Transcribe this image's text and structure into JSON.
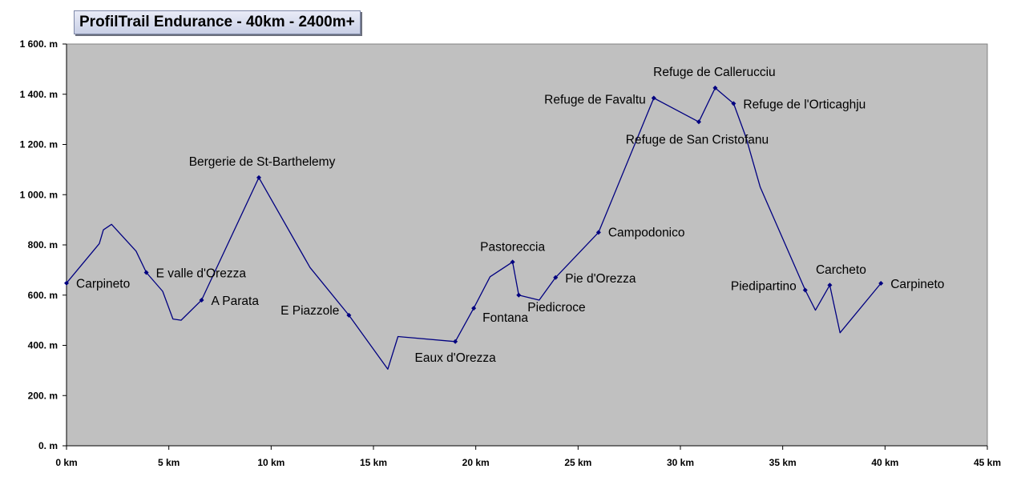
{
  "title": "ProfilTrail Endurance - 40km - 2400m+",
  "colors": {
    "plot_bg": "#c0c0c0",
    "line": "#000080",
    "marker": "#000080"
  },
  "chart_data": {
    "type": "line",
    "title": "ProfilTrail Endurance - 40km - 2400m+",
    "xlabel": "",
    "ylabel": "",
    "xlim": [
      0,
      45
    ],
    "ylim": [
      0,
      1600
    ],
    "x_ticks": [
      0,
      5,
      10,
      15,
      20,
      25,
      30,
      35,
      40,
      45
    ],
    "x_tick_labels": [
      "0 km",
      "5 km",
      "10 km",
      "15 km",
      "20 km",
      "25 km",
      "30 km",
      "35 km",
      "40 km",
      "45 km"
    ],
    "y_ticks": [
      0,
      200,
      400,
      600,
      800,
      1000,
      1200,
      1400,
      1600
    ],
    "y_tick_labels": [
      "0. m",
      "200. m",
      "400. m",
      "600. m",
      "800. m",
      "1 000. m",
      "1 200. m",
      "1 400. m",
      "1 600. m"
    ],
    "grid": false,
    "legend": "none",
    "series": [
      {
        "x": [
          0,
          1.6,
          1.8,
          2.2,
          3.4,
          3.9,
          4.7,
          5.2,
          5.6,
          6.6,
          9.4,
          11.9,
          13.8,
          15.7,
          16.2,
          19.0,
          19.9,
          20.7,
          21.8,
          22.1,
          23.1,
          23.9,
          26.0,
          28.7,
          30.9,
          31.7,
          32.6,
          33.2,
          33.9,
          36.1,
          36.6,
          37.3,
          37.8,
          39.8
        ],
        "y": [
          648,
          805,
          860,
          882,
          775,
          690,
          615,
          505,
          500,
          580,
          1068,
          710,
          520,
          305,
          435,
          415,
          548,
          673,
          732,
          600,
          580,
          670,
          850,
          1385,
          1290,
          1425,
          1363,
          1230,
          1030,
          620,
          540,
          640,
          450,
          647
        ]
      }
    ],
    "waypoints": [
      {
        "label": "Carpineto",
        "x": 0,
        "y": 648
      },
      {
        "label": "E valle d'Orezza",
        "x": 3.9,
        "y": 690
      },
      {
        "label": "A Parata",
        "x": 6.6,
        "y": 580
      },
      {
        "label": "Bergerie de St-Barthelemy",
        "x": 9.4,
        "y": 1068
      },
      {
        "label": "E Piazzole",
        "x": 13.8,
        "y": 520
      },
      {
        "label": "Eaux d'Orezza",
        "x": 19.0,
        "y": 415
      },
      {
        "label": "Fontana",
        "x": 19.9,
        "y": 548
      },
      {
        "label": "Pastoreccia",
        "x": 21.8,
        "y": 732
      },
      {
        "label": "Piedicroce",
        "x": 22.1,
        "y": 600
      },
      {
        "label": "Pie d'Orezza",
        "x": 23.9,
        "y": 670
      },
      {
        "label": "Campodonico",
        "x": 26.0,
        "y": 850
      },
      {
        "label": "Refuge de Favaltu",
        "x": 28.7,
        "y": 1385
      },
      {
        "label": "Refuge de San Cristofanu",
        "x": 30.9,
        "y": 1290
      },
      {
        "label": "Refuge de Callerucciu",
        "x": 31.7,
        "y": 1425
      },
      {
        "label": "Refuge de l'Orticaghju",
        "x": 32.6,
        "y": 1363
      },
      {
        "label": "Piedipartino",
        "x": 36.1,
        "y": 620
      },
      {
        "label": "Carcheto",
        "x": 37.3,
        "y": 640
      },
      {
        "label": "Carpineto",
        "x": 39.8,
        "y": 647
      }
    ]
  }
}
